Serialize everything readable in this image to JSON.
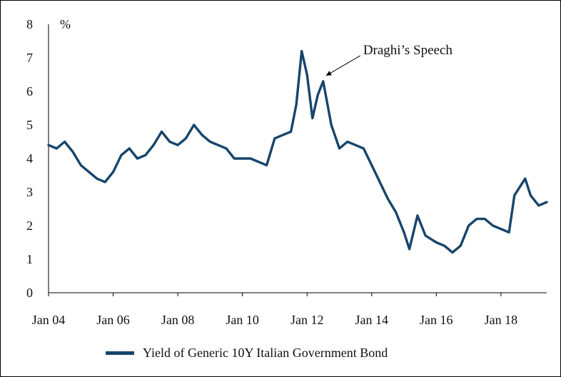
{
  "chart_data": {
    "type": "line",
    "unit_label": "%",
    "ylim": [
      0,
      8
    ],
    "y_ticks": [
      "0",
      "1",
      "2",
      "3",
      "4",
      "5",
      "6",
      "7",
      "8"
    ],
    "x_ticks": [
      "Jan 04",
      "Jan 06",
      "Jan 08",
      "Jan 10",
      "Jan 12",
      "Jan 14",
      "Jan 16",
      "Jan 18"
    ],
    "xlim": [
      "2004-01",
      "2019-06"
    ],
    "grid": false,
    "legend_position": "bottom",
    "annotation": {
      "text": "Draghi’s Speech",
      "points_to": {
        "x": "2012-07",
        "y": 6.3
      }
    },
    "series": [
      {
        "name": "Yield of Generic 10Y Italian Government Bond",
        "color": "#17456b",
        "x": [
          "2004-01",
          "2004-04",
          "2004-07",
          "2004-10",
          "2005-01",
          "2005-04",
          "2005-07",
          "2005-10",
          "2006-01",
          "2006-04",
          "2006-07",
          "2006-10",
          "2007-01",
          "2007-04",
          "2007-07",
          "2007-10",
          "2008-01",
          "2008-04",
          "2008-07",
          "2008-10",
          "2009-01",
          "2009-04",
          "2009-07",
          "2009-10",
          "2010-01",
          "2010-04",
          "2010-07",
          "2010-10",
          "2011-01",
          "2011-04",
          "2011-07",
          "2011-09",
          "2011-11",
          "2012-01",
          "2012-03",
          "2012-05",
          "2012-07",
          "2012-10",
          "2013-01",
          "2013-04",
          "2013-07",
          "2013-10",
          "2014-01",
          "2014-04",
          "2014-07",
          "2014-10",
          "2015-01",
          "2015-03",
          "2015-06",
          "2015-09",
          "2016-01",
          "2016-04",
          "2016-07",
          "2016-10",
          "2017-01",
          "2017-04",
          "2017-07",
          "2017-10",
          "2018-01",
          "2018-04",
          "2018-06",
          "2018-10",
          "2018-12",
          "2019-03",
          "2019-06"
        ],
        "values": [
          4.4,
          4.3,
          4.5,
          4.2,
          3.8,
          3.6,
          3.4,
          3.3,
          3.6,
          4.1,
          4.3,
          4.0,
          4.1,
          4.4,
          4.8,
          4.5,
          4.4,
          4.6,
          5.0,
          4.7,
          4.5,
          4.4,
          4.3,
          4.0,
          4.0,
          4.0,
          3.9,
          3.8,
          4.6,
          4.7,
          4.8,
          5.6,
          7.2,
          6.5,
          5.2,
          5.9,
          6.3,
          5.0,
          4.3,
          4.5,
          4.4,
          4.3,
          3.8,
          3.3,
          2.8,
          2.4,
          1.8,
          1.3,
          2.3,
          1.7,
          1.5,
          1.4,
          1.2,
          1.4,
          2.0,
          2.2,
          2.2,
          2.0,
          1.9,
          1.8,
          2.9,
          3.4,
          2.9,
          2.6,
          2.7
        ]
      }
    ]
  }
}
